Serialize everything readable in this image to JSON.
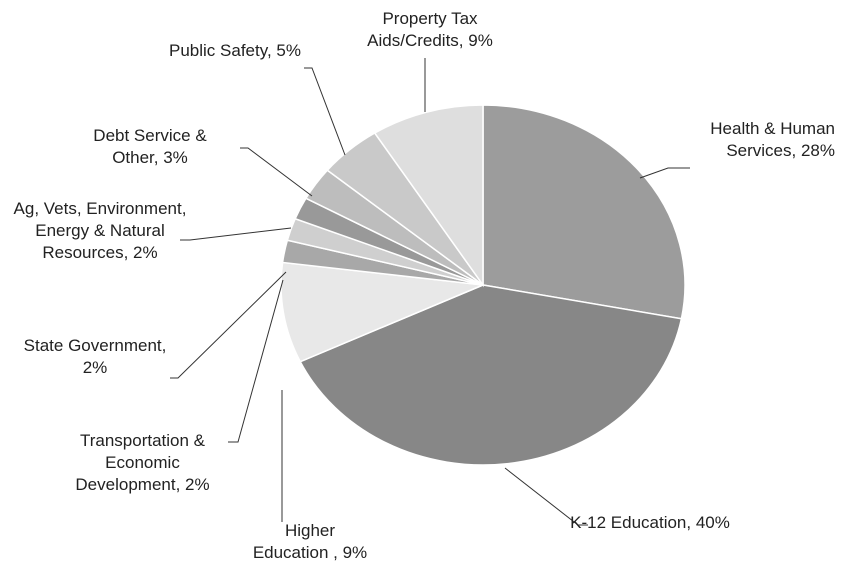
{
  "chart_data": {
    "type": "pie",
    "categories": [
      "Health & Human Services, 28%",
      "K-12 Education, 40%",
      "Higher Education , 9%",
      "Transportation & Economic Development, 2%",
      "State Government, 2%",
      "Ag, Vets, Environment, Energy & Natural Resources, 2%",
      "Debt Service & Other, 3%",
      "Public Safety, 5%",
      "Property Tax Aids/Credits, 9%"
    ],
    "values": [
      28,
      40,
      9,
      2,
      2,
      2,
      3,
      5,
      9
    ],
    "colors": [
      "#9c9c9c",
      "#878787",
      "#e8e8e8",
      "#a8a8a8",
      "#cfcfcf",
      "#999999",
      "#bdbdbd",
      "#c9c9c9",
      "#dedede"
    ]
  }
}
